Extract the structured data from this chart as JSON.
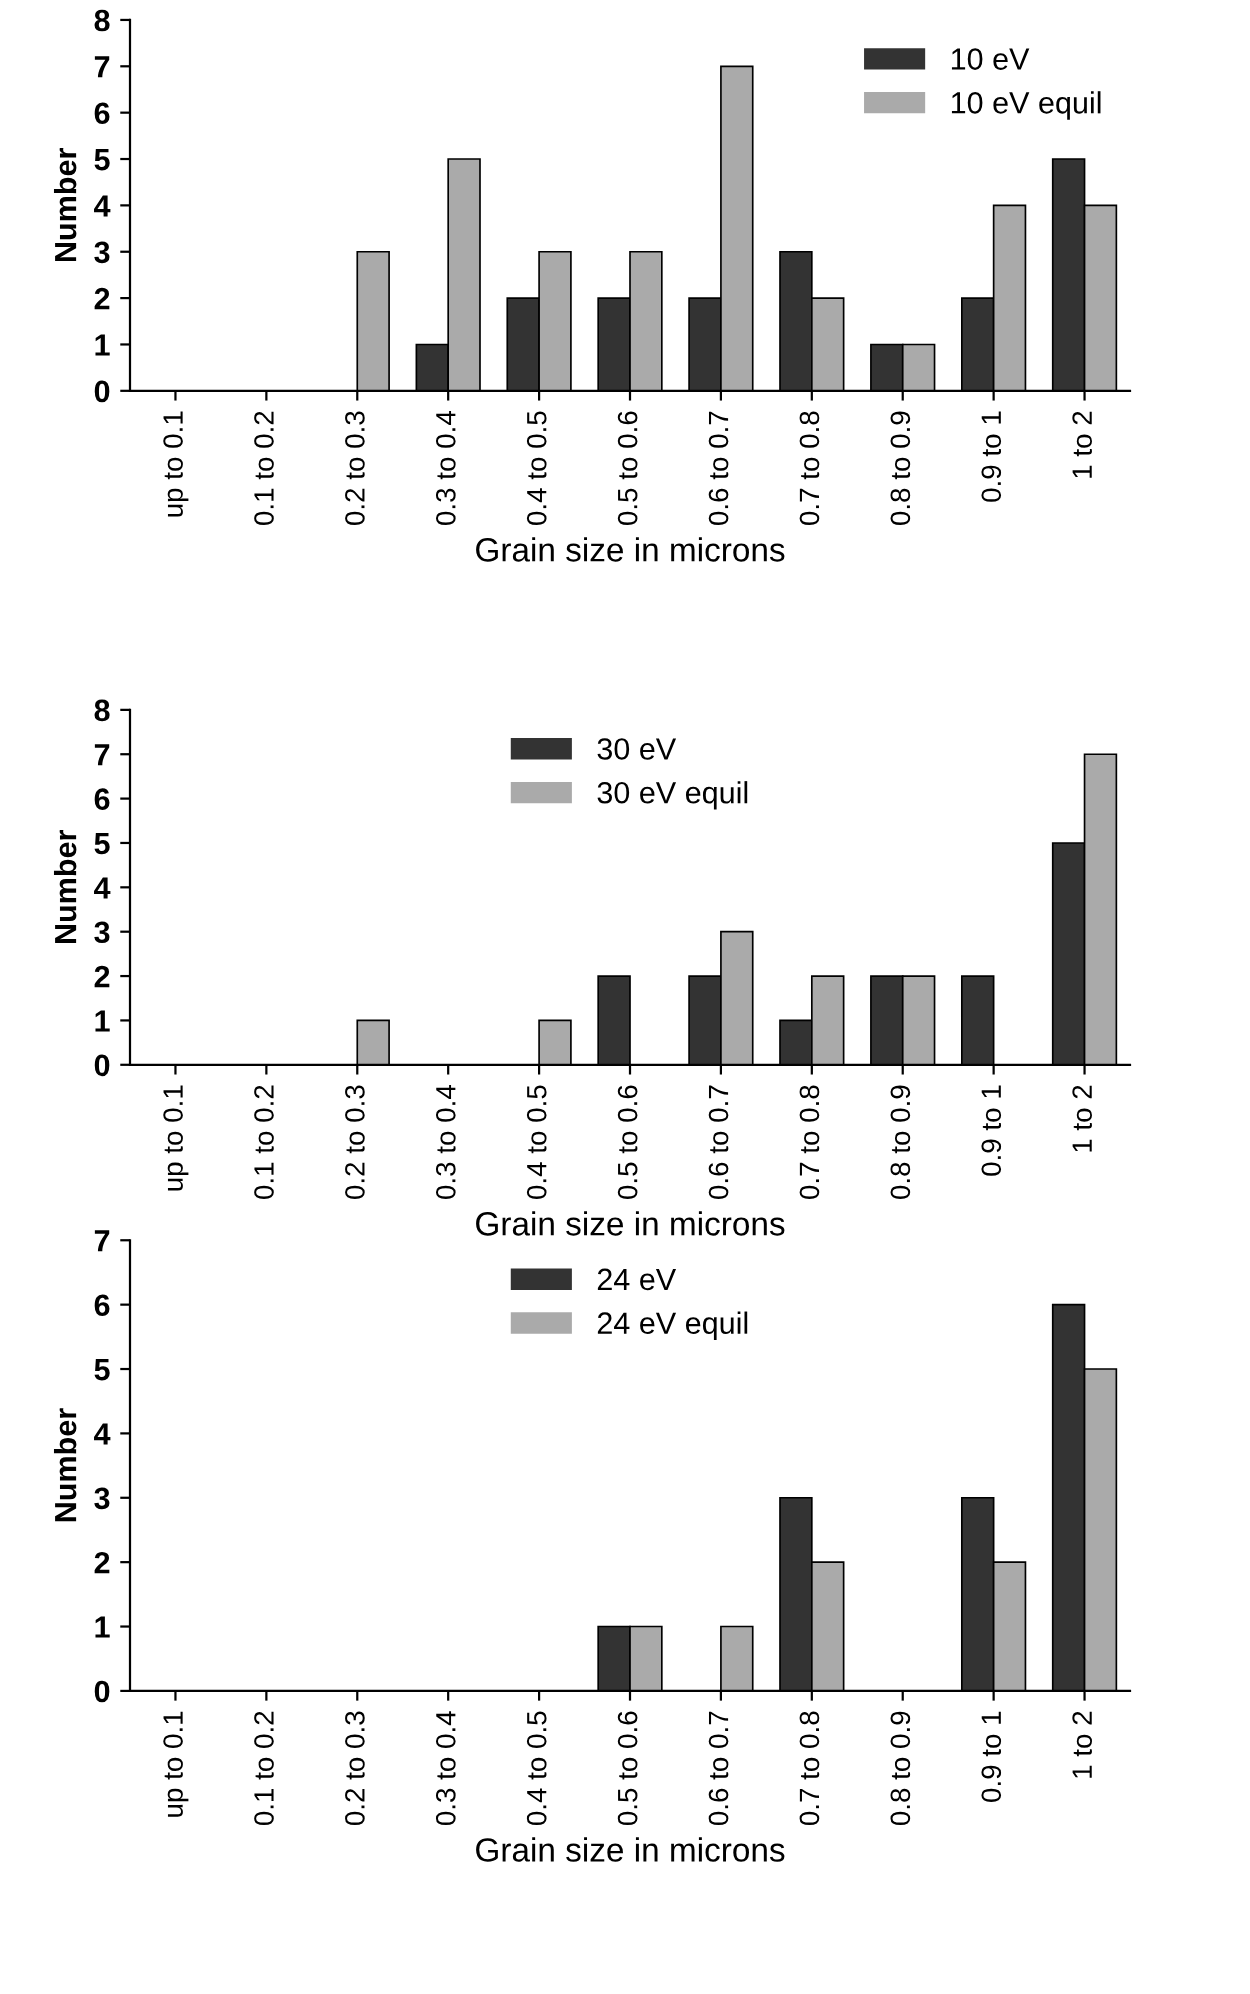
{
  "chart_data": [
    {
      "type": "bar",
      "xlabel": "Grain size in microns",
      "ylabel": "Number",
      "categories": [
        "up to 0.1",
        "0.1 to 0.2",
        "0.2 to 0.3",
        "0.3 to 0.4",
        "0.4 to 0.5",
        "0.5 to 0.6",
        "0.6 to 0.7",
        "0.7 to 0.8",
        "0.8 to 0.9",
        "0.9 to 1",
        "1 to 2"
      ],
      "series": [
        {
          "name": "10 eV",
          "color": "#333333",
          "values": [
            0,
            0,
            0,
            1,
            2,
            2,
            2,
            3,
            1,
            2,
            5
          ]
        },
        {
          "name": "10 eV equil",
          "color": "#aaaaaa",
          "values": [
            0,
            0,
            3,
            5,
            3,
            3,
            7,
            2,
            1,
            4,
            4
          ]
        }
      ],
      "ylim": [
        0,
        8
      ],
      "yticks": [
        0,
        1,
        2,
        3,
        4,
        5,
        6,
        7,
        8
      ],
      "grid": false,
      "legend": "top right"
    },
    {
      "type": "bar",
      "xlabel": "Grain size in microns",
      "ylabel": "Number",
      "categories": [
        "up to 0.1",
        "0.1 to 0.2",
        "0.2 to 0.3",
        "0.3 to 0.4",
        "0.4 to 0.5",
        "0.5 to 0.6",
        "0.6 to 0.7",
        "0.7 to 0.8",
        "0.8 to 0.9",
        "0.9 to 1",
        "1 to 2"
      ],
      "series": [
        {
          "name": "30 eV",
          "color": "#333333",
          "values": [
            0,
            0,
            0,
            0,
            0,
            2,
            2,
            1,
            2,
            2,
            5
          ]
        },
        {
          "name": "30 eV equil",
          "color": "#aaaaaa",
          "values": [
            0,
            0,
            1,
            0,
            1,
            0,
            3,
            2,
            2,
            0,
            7
          ]
        }
      ],
      "ylim": [
        0,
        8
      ],
      "yticks": [
        0,
        1,
        2,
        3,
        4,
        5,
        6,
        7,
        8
      ],
      "grid": false,
      "legend": "top"
    },
    {
      "type": "bar",
      "xlabel": "Grain size in microns",
      "ylabel": "Number",
      "categories": [
        "up to 0.1",
        "0.1 to 0.2",
        "0.2 to 0.3",
        "0.3 to 0.4",
        "0.4 to 0.5",
        "0.5 to 0.6",
        "0.6 to 0.7",
        "0.7 to 0.8",
        "0.8 to 0.9",
        "0.9 to 1",
        "1 to 2"
      ],
      "series": [
        {
          "name": "24 eV",
          "color": "#333333",
          "values": [
            0,
            0,
            0,
            0,
            0,
            1,
            0,
            3,
            0,
            3,
            6
          ]
        },
        {
          "name": "24 eV equil",
          "color": "#aaaaaa",
          "values": [
            0,
            0,
            0,
            0,
            0,
            1,
            1,
            2,
            0,
            2,
            5
          ]
        }
      ],
      "ylim": [
        0,
        7
      ],
      "yticks": [
        0,
        1,
        2,
        3,
        4,
        5,
        6,
        7
      ],
      "grid": false,
      "legend": "top"
    }
  ]
}
